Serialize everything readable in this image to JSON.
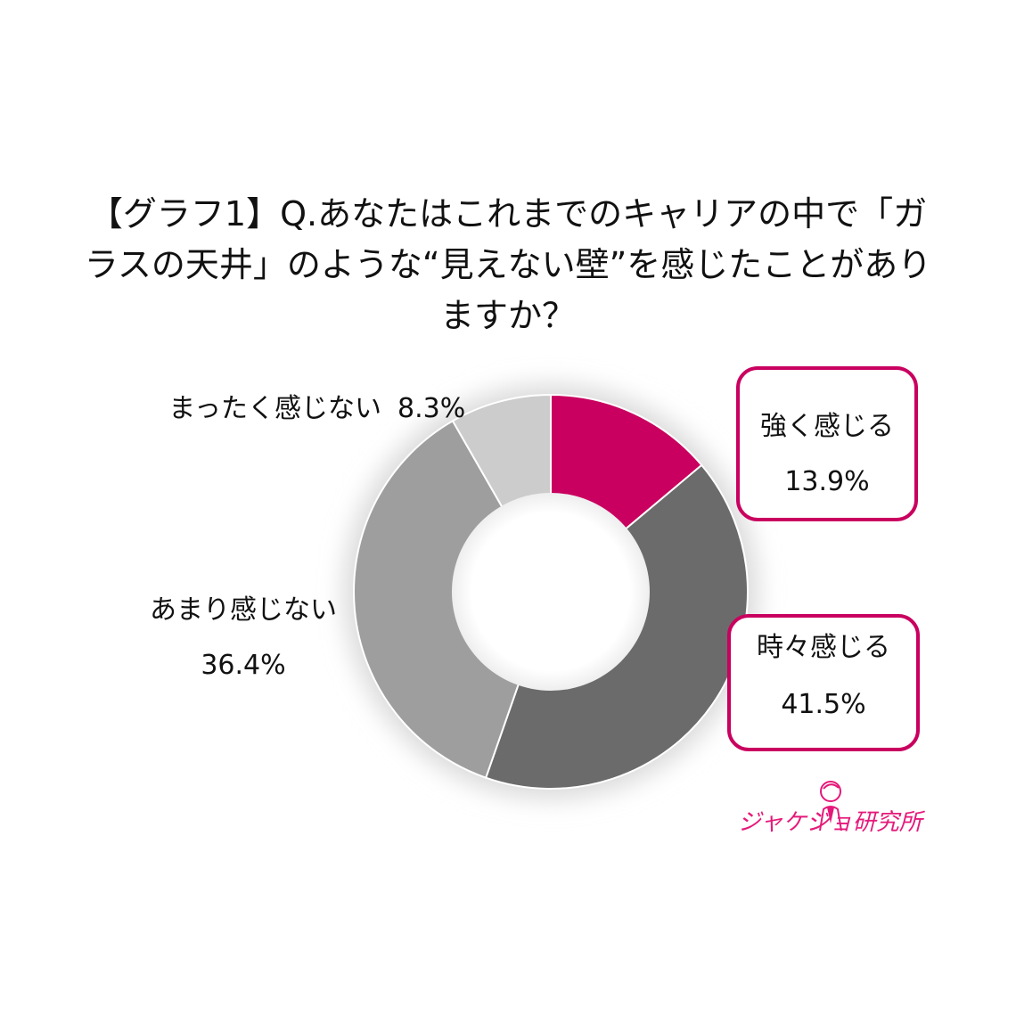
{
  "title_lines": [
    "【グラフ1】Q.あなたはこれまでのキャリアの中で「ガ",
    "ラスの天井」のような“見えない壁”を感じたことがあり",
    "ますか？"
  ],
  "logo_text": "ジャケジョ研究所",
  "colors": {
    "accent": "#c9005f",
    "slice_strong": "#c9005f",
    "slice_sometimes": "#6b6b6b",
    "slice_rarely": "#9e9e9e",
    "slice_never": "#cccccc"
  },
  "chart_data": {
    "type": "pie",
    "donut": true,
    "title": "【グラフ1】Q.あなたはこれまでのキャリアの中で「ガラスの天井」のような“見えない壁”を感じたことがありますか？",
    "categories": [
      "強く感じる",
      "時々感じる",
      "あまり感じない",
      "まったく感じない"
    ],
    "values": [
      13.9,
      41.5,
      36.4,
      8.3
    ],
    "value_labels": [
      "13.9%",
      "41.5%",
      "36.4%",
      "8.3%"
    ],
    "legend": "none"
  }
}
